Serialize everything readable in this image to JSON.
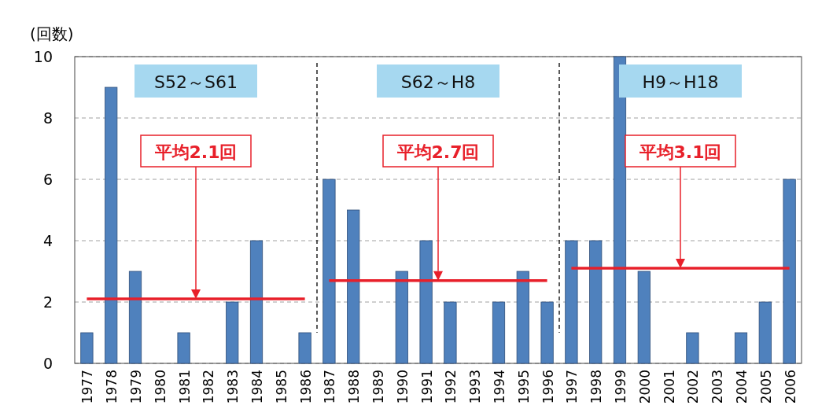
{
  "chart_data": {
    "type": "bar",
    "ylabel": "(回数)",
    "categories": [
      "1977",
      "1978",
      "1979",
      "1980",
      "1981",
      "1982",
      "1983",
      "1984",
      "1985",
      "1986",
      "1987",
      "1988",
      "1989",
      "1990",
      "1991",
      "1992",
      "1993",
      "1994",
      "1995",
      "1996",
      "1997",
      "1998",
      "1999",
      "2000",
      "2001",
      "2002",
      "2003",
      "2004",
      "2005",
      "2006"
    ],
    "series": [
      {
        "color": "#4f81bd",
        "values": [
          1,
          9,
          3,
          0,
          1,
          0,
          2,
          4,
          0,
          1,
          6,
          5,
          0,
          3,
          4,
          2,
          0,
          2,
          3,
          2,
          4,
          4,
          10,
          3,
          0,
          1,
          0,
          1,
          2,
          6
        ]
      },
      {
        "type": "line",
        "color": "#e8202a",
        "values": [
          2.1,
          2.1,
          2.1,
          2.1,
          2.1,
          2.1,
          2.1,
          2.1,
          2.1,
          2.1,
          null,
          null,
          null,
          null,
          null,
          null,
          null,
          null,
          null,
          null,
          null,
          null,
          null,
          null,
          null,
          null,
          null,
          null,
          null,
          null
        ]
      },
      {
        "type": "line",
        "color": "#e8202a",
        "values": [
          null,
          null,
          null,
          null,
          null,
          null,
          null,
          null,
          null,
          null,
          2.7,
          2.7,
          2.7,
          2.7,
          2.7,
          2.7,
          2.7,
          2.7,
          2.7,
          2.7,
          null,
          null,
          null,
          null,
          null,
          null,
          null,
          null,
          null,
          null
        ]
      },
      {
        "type": "line",
        "color": "#e8202a",
        "values": [
          null,
          null,
          null,
          null,
          null,
          null,
          null,
          null,
          null,
          null,
          null,
          null,
          null,
          null,
          null,
          null,
          null,
          null,
          null,
          null,
          3.1,
          3.1,
          3.1,
          3.1,
          3.1,
          3.1,
          3.1,
          3.1,
          3.1,
          3.1
        ]
      }
    ],
    "ylim": [
      0,
      10
    ],
    "yticks": [
      0,
      2,
      4,
      6,
      8,
      10
    ],
    "grid": "y",
    "marker": "none",
    "line_style": "solid",
    "annotations": [
      "S52～S61",
      "S62～H8",
      "H9～H18",
      "平均2.1回",
      "平均2.7回",
      "平均3.1回"
    ]
  }
}
